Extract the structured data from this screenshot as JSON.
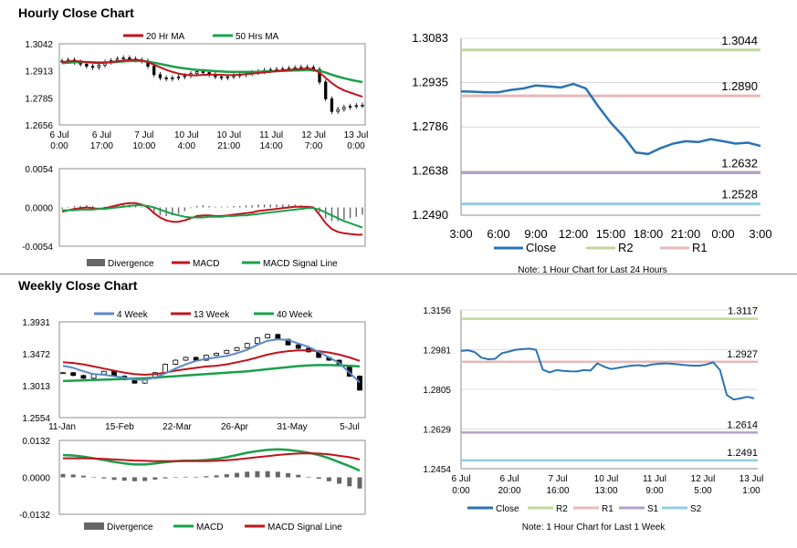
{
  "sections": {
    "hourly_title": "Hourly Close Chart",
    "weekly_title": "Weekly Close Chart"
  },
  "colors": {
    "ma_short": "#c0141c",
    "ma_long": "#1aa04a",
    "ma_4wk": "#5b8ac6",
    "close": "#2a73b3",
    "r2": "#c3d69b",
    "r1": "#e6b9b8",
    "s1": "#b3a2c7",
    "s2": "#93cddd",
    "divergence": "#666666"
  },
  "chart_data": [
    {
      "id": "hourly_price",
      "type": "candlestick",
      "legend": [
        "20 Hr MA",
        "50 Hrs MA"
      ],
      "yticks": [
        "1.3042",
        "1.2913",
        "1.2785",
        "1.2656"
      ],
      "ylim": [
        1.2656,
        1.3042
      ],
      "xticks": [
        [
          "6 Jul",
          "0:00"
        ],
        [
          "6 Jul",
          "17:00"
        ],
        [
          "7 Jul",
          "10:00"
        ],
        [
          "10 Jul",
          "4:00"
        ],
        [
          "10 Jul",
          "21:00"
        ],
        [
          "11 Jul",
          "14:00"
        ],
        [
          "12 Jul",
          "7:00"
        ],
        [
          "13 Jul",
          "0:00"
        ]
      ],
      "close": [
        1.296,
        1.2965,
        1.2955,
        1.2945,
        1.2935,
        1.293,
        1.294,
        1.2955,
        1.2962,
        1.297,
        1.2975,
        1.297,
        1.2965,
        1.296,
        1.2935,
        1.2895,
        1.288,
        1.2875,
        1.288,
        1.2885,
        1.289,
        1.29,
        1.291,
        1.2905,
        1.2895,
        1.2885,
        1.288,
        1.2885,
        1.289,
        1.2895,
        1.29,
        1.2905,
        1.291,
        1.2915,
        1.2918,
        1.292,
        1.2922,
        1.2925,
        1.2928,
        1.293,
        1.293,
        1.292,
        1.286,
        1.278,
        1.272,
        1.273,
        1.274,
        1.2745,
        1.2748,
        1.275
      ],
      "ma20": [
        1.2955,
        1.2958,
        1.296,
        1.2958,
        1.2955,
        1.2952,
        1.295,
        1.2952,
        1.2955,
        1.2958,
        1.2962,
        1.2965,
        1.2966,
        1.2963,
        1.2955,
        1.2942,
        1.293,
        1.2918,
        1.2908,
        1.29,
        1.2895,
        1.2892,
        1.2892,
        1.2894,
        1.2895,
        1.2895,
        1.2894,
        1.2893,
        1.2893,
        1.2895,
        1.2897,
        1.29,
        1.2903,
        1.2906,
        1.2909,
        1.2912,
        1.2915,
        1.2918,
        1.292,
        1.2922,
        1.2925,
        1.292,
        1.2905,
        1.288,
        1.2855,
        1.2835,
        1.282,
        1.281,
        1.28,
        1.279
      ],
      "ma50": [
        1.295,
        1.2952,
        1.2954,
        1.2955,
        1.2955,
        1.2954,
        1.2953,
        1.2953,
        1.2954,
        1.2956,
        1.2958,
        1.296,
        1.2961,
        1.296,
        1.2957,
        1.2952,
        1.2946,
        1.294,
        1.2934,
        1.2929,
        1.2925,
        1.2921,
        1.2918,
        1.2916,
        1.2914,
        1.2912,
        1.291,
        1.2909,
        1.2908,
        1.2908,
        1.2908,
        1.2908,
        1.2909,
        1.291,
        1.2911,
        1.2912,
        1.2913,
        1.2914,
        1.2915,
        1.2916,
        1.2917,
        1.2916,
        1.2913,
        1.2905,
        1.2895,
        1.2886,
        1.2878,
        1.2871,
        1.2865,
        1.286
      ]
    },
    {
      "id": "hourly_macd",
      "type": "macd",
      "legend": [
        "Divergence",
        "MACD",
        "MACD Signal Line"
      ],
      "yticks": [
        "0.0054",
        "0.0000",
        "-0.0054"
      ],
      "ylim": [
        -0.0054,
        0.0054
      ],
      "macd": [
        -0.0006,
        -0.0004,
        -0.0002,
        -0.0001,
        0.0,
        -0.0001,
        -0.0002,
        -0.0001,
        0.0001,
        0.0003,
        0.0005,
        0.0006,
        0.0006,
        0.0004,
        0.0,
        -0.0008,
        -0.0014,
        -0.0018,
        -0.002,
        -0.002,
        -0.0018,
        -0.0015,
        -0.0012,
        -0.0011,
        -0.0011,
        -0.0012,
        -0.0012,
        -0.0011,
        -0.001,
        -0.0009,
        -0.0008,
        -0.0007,
        -0.0005,
        -0.0004,
        -0.0003,
        -0.0002,
        -0.0001,
        0.0,
        0.0001,
        0.0001,
        0.0001,
        0.0,
        -0.001,
        -0.0022,
        -0.003,
        -0.0034,
        -0.0036,
        -0.0037,
        -0.0038,
        -0.0038
      ],
      "signal": [
        -0.0004,
        -0.0004,
        -0.0004,
        -0.0003,
        -0.0003,
        -0.0003,
        -0.0002,
        -0.0002,
        -0.0001,
        0.0,
        0.0001,
        0.0002,
        0.0003,
        0.0003,
        0.0002,
        0.0,
        -0.0003,
        -0.0006,
        -0.0009,
        -0.0011,
        -0.0013,
        -0.0014,
        -0.0014,
        -0.0014,
        -0.0013,
        -0.0013,
        -0.0013,
        -0.0012,
        -0.0012,
        -0.0011,
        -0.0011,
        -0.001,
        -0.0009,
        -0.0008,
        -0.0007,
        -0.0006,
        -0.0005,
        -0.0004,
        -0.0003,
        -0.0002,
        -0.0001,
        -0.0001,
        -0.0003,
        -0.0007,
        -0.0011,
        -0.0015,
        -0.0019,
        -0.0022,
        -0.0025,
        -0.0028
      ]
    },
    {
      "id": "hourly_24h",
      "type": "line",
      "legend": [
        "Close",
        "R2",
        "R1"
      ],
      "yticks": [
        "1.3083",
        "1.2935",
        "1.2786",
        "1.2638",
        "1.2490"
      ],
      "ylim": [
        1.249,
        1.3083
      ],
      "xticks": [
        "3:00",
        "6:00",
        "9:00",
        "12:00",
        "15:00",
        "18:00",
        "21:00",
        "0:00",
        "3:00"
      ],
      "close": [
        1.2905,
        1.2904,
        1.2902,
        1.2902,
        1.291,
        1.2915,
        1.2925,
        1.2922,
        1.2918,
        1.293,
        1.2915,
        1.2855,
        1.28,
        1.2755,
        1.27,
        1.2695,
        1.2715,
        1.273,
        1.2738,
        1.2735,
        1.2745,
        1.2738,
        1.273,
        1.2733,
        1.2722
      ],
      "levels": [
        {
          "name": "R2",
          "value": "1.3044"
        },
        {
          "name": "R1",
          "value": "1.2890"
        },
        {
          "name": "S1",
          "value": "1.2632"
        },
        {
          "name": "S2",
          "value": "1.2528"
        }
      ],
      "note": "Note: 1 Hour Chart for Last 24 Hours"
    },
    {
      "id": "weekly_price",
      "type": "candlestick",
      "legend": [
        "4 Week",
        "13 Week",
        "40 Week"
      ],
      "yticks": [
        "1.3931",
        "1.3472",
        "1.3013",
        "1.2554"
      ],
      "ylim": [
        1.2554,
        1.3931
      ],
      "xticks": [
        "11-Jan",
        "15-Feb",
        "22-Mar",
        "26-Apr",
        "31-May",
        "5-Jul"
      ],
      "close": [
        1.32,
        1.316,
        1.312,
        1.318,
        1.322,
        1.315,
        1.31,
        1.305,
        1.312,
        1.32,
        1.332,
        1.338,
        1.342,
        1.338,
        1.345,
        1.348,
        1.352,
        1.356,
        1.362,
        1.37,
        1.375,
        1.368,
        1.36,
        1.355,
        1.35,
        1.342,
        1.338,
        1.33,
        1.315,
        1.295
      ],
      "ma4": [
        1.33,
        1.327,
        1.322,
        1.318,
        1.317,
        1.315,
        1.313,
        1.31,
        1.31,
        1.313,
        1.319,
        1.326,
        1.332,
        1.337,
        1.34,
        1.342,
        1.344,
        1.348,
        1.353,
        1.36,
        1.366,
        1.368,
        1.367,
        1.362,
        1.357,
        1.35,
        1.342,
        1.334,
        1.32,
        1.306
      ],
      "ma13": [
        1.335,
        1.334,
        1.332,
        1.329,
        1.326,
        1.323,
        1.32,
        1.318,
        1.317,
        1.318,
        1.32,
        1.323,
        1.325,
        1.327,
        1.329,
        1.33,
        1.332,
        1.335,
        1.338,
        1.342,
        1.346,
        1.349,
        1.351,
        1.352,
        1.352,
        1.351,
        1.349,
        1.346,
        1.342,
        1.337
      ],
      "ma40": [
        1.308,
        1.3085,
        1.309,
        1.3095,
        1.31,
        1.3105,
        1.311,
        1.3115,
        1.312,
        1.313,
        1.314,
        1.315,
        1.316,
        1.317,
        1.318,
        1.319,
        1.32,
        1.321,
        1.322,
        1.3235,
        1.325,
        1.3265,
        1.328,
        1.3295,
        1.3305,
        1.331,
        1.331,
        1.3305,
        1.33,
        1.329
      ]
    },
    {
      "id": "weekly_macd",
      "type": "macd",
      "legend": [
        "Divergence",
        "MACD",
        "MACD Signal Line"
      ],
      "yticks": [
        "0.0132",
        "0.0000",
        "-0.0132"
      ],
      "ylim": [
        -0.0132,
        0.0132
      ],
      "macd": [
        0.008,
        0.0078,
        0.0074,
        0.0068,
        0.0062,
        0.0055,
        0.005,
        0.0046,
        0.0046,
        0.005,
        0.0054,
        0.0058,
        0.006,
        0.006,
        0.0062,
        0.0066,
        0.0072,
        0.008,
        0.0088,
        0.0094,
        0.0098,
        0.01,
        0.0098,
        0.0094,
        0.0088,
        0.008,
        0.0068,
        0.0054,
        0.004,
        0.0024
      ],
      "signal": [
        0.0068,
        0.0068,
        0.0068,
        0.0067,
        0.0066,
        0.0064,
        0.0062,
        0.006,
        0.0059,
        0.0058,
        0.0058,
        0.0058,
        0.0058,
        0.0058,
        0.0058,
        0.0059,
        0.0061,
        0.0064,
        0.0068,
        0.0072,
        0.0076,
        0.008,
        0.0083,
        0.0085,
        0.0086,
        0.0085,
        0.0082,
        0.0077,
        0.0072,
        0.0064
      ],
      "divergence": [
        0.0012,
        0.001,
        0.0006,
        0.0001,
        -0.0004,
        -0.0009,
        -0.0012,
        -0.0014,
        -0.0013,
        -0.0008,
        -0.0004,
        0.0,
        0.0002,
        0.0002,
        0.0004,
        0.0007,
        0.0011,
        0.0016,
        0.002,
        0.0022,
        0.0022,
        0.002,
        0.0015,
        0.0009,
        0.0002,
        -0.0005,
        -0.0014,
        -0.0023,
        -0.0032,
        -0.004
      ]
    },
    {
      "id": "weekly_1w",
      "type": "line",
      "legend": [
        "Close",
        "R2",
        "R1",
        "S1",
        "S2"
      ],
      "yticks": [
        "1.3156",
        "1.2981",
        "1.2805",
        "1.2629",
        "1.2454"
      ],
      "ylim": [
        1.2454,
        1.3156
      ],
      "xticks": [
        [
          "6 Jul",
          "0:00"
        ],
        [
          "6 Jul",
          "20:00"
        ],
        [
          "7 Jul",
          "16:00"
        ],
        [
          "10 Jul",
          "13:00"
        ],
        [
          "11 Jul",
          "9:00"
        ],
        [
          "12 Jul",
          "5:00"
        ],
        [
          "13 Jul",
          "1:00"
        ]
      ],
      "close": [
        1.2975,
        1.2978,
        1.297,
        1.2945,
        1.2938,
        1.294,
        1.2965,
        1.2972,
        1.298,
        1.2983,
        1.2985,
        1.298,
        1.2892,
        1.288,
        1.289,
        1.2887,
        1.2885,
        1.2884,
        1.289,
        1.2888,
        1.292,
        1.2905,
        1.2895,
        1.29,
        1.2905,
        1.291,
        1.2912,
        1.2908,
        1.2915,
        1.2918,
        1.292,
        1.2918,
        1.2915,
        1.2912,
        1.291,
        1.291,
        1.2915,
        1.2925,
        1.289,
        1.278,
        1.276,
        1.2765,
        1.2772,
        1.2765
      ],
      "levels": [
        {
          "name": "R2",
          "value": "1.3117"
        },
        {
          "name": "R1",
          "value": "1.2927"
        },
        {
          "name": "S1",
          "value": "1.2614"
        },
        {
          "name": "S2",
          "value": "1.2491"
        }
      ],
      "note": "Note: 1 Hour Chart for Last 1 Week"
    }
  ]
}
